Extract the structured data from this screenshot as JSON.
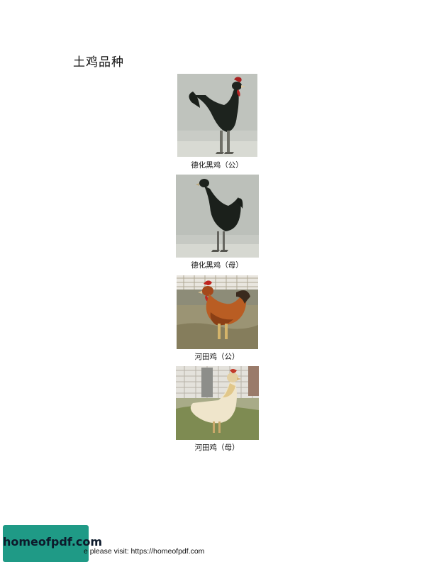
{
  "document": {
    "title": "土鸡品种"
  },
  "figures": [
    {
      "caption": "德化黑鸡（公）",
      "subject": "black-rooster"
    },
    {
      "caption": "德化黑鸡（母）",
      "subject": "black-hen"
    },
    {
      "caption": "河田鸡（公）",
      "subject": "red-rooster"
    },
    {
      "caption": "河田鸡（母）",
      "subject": "yellow-hen"
    }
  ],
  "footer": {
    "logo_text": "homeofpdf.com",
    "text": "e please visit: https://homeofpdf.com",
    "logo_color": "#1f9a86"
  }
}
